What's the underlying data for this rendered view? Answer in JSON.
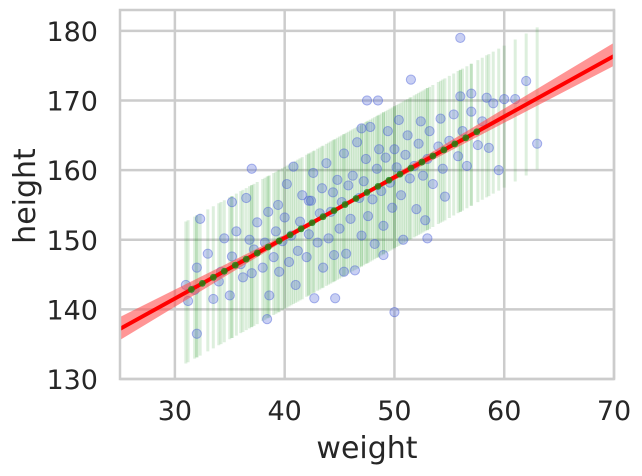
{
  "chart_data": {
    "type": "scatter",
    "title": "",
    "xlabel": "weight",
    "ylabel": "height",
    "xlim": [
      25,
      70
    ],
    "ylim": [
      130,
      183
    ],
    "xticks": [
      30,
      40,
      50,
      60,
      70
    ],
    "yticks": [
      130,
      140,
      150,
      160,
      170,
      180
    ],
    "grid": true,
    "colors": {
      "points": "#4a5fd8",
      "prediction_interval": "#2e9a2e",
      "regression_line": "#ff0000",
      "regression_band": "#ff4f4f",
      "mean_markers": "#138a13",
      "grid": "#cccccc",
      "axes": "#cccccc"
    },
    "regression_line": {
      "points": [
        [
          25,
          137.2
        ],
        [
          70,
          176.4
        ]
      ]
    },
    "confidence_band": {
      "x": [
        25,
        40,
        47.5,
        55,
        70
      ],
      "lower": [
        135.6,
        149.9,
        156.5,
        162.7,
        175.0
      ],
      "upper": [
        138.9,
        150.7,
        157.0,
        164.1,
        178.3
      ]
    },
    "prediction_interval_halfwidth": 10.2,
    "observations": [
      [
        31.0,
        143.5
      ],
      [
        31.2,
        141.2
      ],
      [
        31.8,
        142.8
      ],
      [
        32.0,
        146.0
      ],
      [
        32.3,
        153.0
      ],
      [
        32.0,
        136.5
      ],
      [
        33.0,
        148.0
      ],
      [
        33.5,
        141.5
      ],
      [
        34.0,
        144.0
      ],
      [
        34.2,
        145.4
      ],
      [
        34.5,
        150.2
      ],
      [
        35.0,
        142.0
      ],
      [
        35.2,
        147.6
      ],
      [
        35.6,
        151.2
      ],
      [
        36.0,
        146.5
      ],
      [
        36.2,
        144.6
      ],
      [
        36.8,
        150.0
      ],
      [
        36.5,
        156.0
      ],
      [
        37.0,
        145.2
      ],
      [
        37.2,
        148.6
      ],
      [
        37.0,
        160.2
      ],
      [
        37.5,
        152.5
      ],
      [
        38.0,
        146.0
      ],
      [
        38.2,
        149.6
      ],
      [
        38.5,
        154.0
      ],
      [
        38.6,
        142.0
      ],
      [
        39.0,
        147.5
      ],
      [
        39.2,
        151.2
      ],
      [
        39.4,
        155.0
      ],
      [
        39.5,
        145.4
      ],
      [
        39.8,
        149.8
      ],
      [
        40.0,
        153.2
      ],
      [
        40.2,
        158.0
      ],
      [
        40.4,
        146.8
      ],
      [
        40.6,
        150.6
      ],
      [
        40.8,
        160.5
      ],
      [
        41.0,
        143.5
      ],
      [
        41.2,
        148.4
      ],
      [
        41.4,
        152.6
      ],
      [
        41.6,
        156.4
      ],
      [
        42.0,
        147.5
      ],
      [
        42.2,
        150.8
      ],
      [
        42.4,
        155.6
      ],
      [
        42.6,
        159.6
      ],
      [
        42.7,
        141.6
      ],
      [
        43.0,
        149.6
      ],
      [
        43.2,
        153.8
      ],
      [
        43.4,
        157.4
      ],
      [
        43.5,
        146.0
      ],
      [
        43.8,
        161.0
      ],
      [
        44.0,
        150.2
      ],
      [
        44.2,
        154.0
      ],
      [
        44.4,
        156.8
      ],
      [
        44.5,
        147.8
      ],
      [
        44.6,
        141.6
      ],
      [
        44.8,
        158.6
      ],
      [
        45.0,
        151.6
      ],
      [
        45.2,
        155.4
      ],
      [
        45.4,
        162.4
      ],
      [
        45.6,
        148.0
      ],
      [
        45.8,
        157.8
      ],
      [
        46.0,
        153.0
      ],
      [
        46.2,
        159.2
      ],
      [
        46.4,
        145.6
      ],
      [
        46.6,
        164.0
      ],
      [
        46.8,
        156.0
      ],
      [
        47.0,
        150.6
      ],
      [
        47.2,
        158.4
      ],
      [
        47.4,
        161.6
      ],
      [
        47.5,
        170.0
      ],
      [
        47.6,
        153.4
      ],
      [
        47.8,
        166.2
      ],
      [
        48.0,
        155.8
      ],
      [
        48.2,
        149.4
      ],
      [
        48.4,
        160.2
      ],
      [
        48.5,
        170.0
      ],
      [
        48.6,
        163.0
      ],
      [
        48.8,
        157.0
      ],
      [
        49.0,
        152.0
      ],
      [
        49.2,
        161.8
      ],
      [
        49.4,
        165.6
      ],
      [
        49.6,
        158.2
      ],
      [
        49.8,
        154.6
      ],
      [
        50.0,
        163.0
      ],
      [
        50.0,
        139.6
      ],
      [
        50.2,
        160.4
      ],
      [
        50.4,
        167.2
      ],
      [
        50.6,
        156.4
      ],
      [
        50.8,
        150.0
      ],
      [
        51.0,
        162.2
      ],
      [
        51.2,
        165.0
      ],
      [
        51.4,
        158.8
      ],
      [
        51.5,
        173.0
      ],
      [
        51.8,
        160.6
      ],
      [
        52.0,
        154.4
      ],
      [
        52.2,
        163.8
      ],
      [
        52.4,
        167.0
      ],
      [
        52.6,
        159.2
      ],
      [
        52.8,
        152.8
      ],
      [
        53.0,
        161.6
      ],
      [
        53.2,
        165.6
      ],
      [
        53.5,
        158.0
      ],
      [
        54.0,
        163.4
      ],
      [
        54.2,
        167.4
      ],
      [
        54.4,
        160.2
      ],
      [
        54.6,
        156.2
      ],
      [
        55.0,
        164.2
      ],
      [
        55.4,
        168.0
      ],
      [
        55.8,
        162.0
      ],
      [
        56.0,
        179.0
      ],
      [
        56.2,
        165.6
      ],
      [
        56.6,
        160.6
      ],
      [
        57.0,
        168.4
      ],
      [
        57.0,
        171.0
      ],
      [
        57.6,
        163.6
      ],
      [
        58.0,
        167.0
      ],
      [
        58.6,
        163.2
      ],
      [
        59.0,
        169.6
      ],
      [
        59.5,
        160.0
      ],
      [
        60.0,
        170.2
      ],
      [
        62.0,
        172.8
      ],
      [
        63.0,
        163.8
      ],
      [
        35.2,
        155.4
      ],
      [
        38.4,
        138.6
      ],
      [
        42.2,
        155.6
      ],
      [
        45.4,
        145.4
      ],
      [
        49.0,
        147.8
      ],
      [
        53.0,
        150.2
      ],
      [
        56.0,
        170.6
      ],
      [
        58.4,
        170.4
      ],
      [
        61.0,
        170.2
      ],
      [
        47.0,
        166.0
      ]
    ],
    "mean_marker_xs": [
      31.5,
      32.5,
      33.5,
      34.5,
      35.5,
      36.5,
      37.5,
      38.5,
      39.5,
      40.5,
      41.5,
      42.5,
      43.5,
      44.5,
      45.5,
      46.5,
      47.5,
      48.5,
      49.5,
      50.5,
      51.5,
      52.5,
      53.5,
      54.5,
      55.5,
      56.5,
      57.5
    ]
  }
}
